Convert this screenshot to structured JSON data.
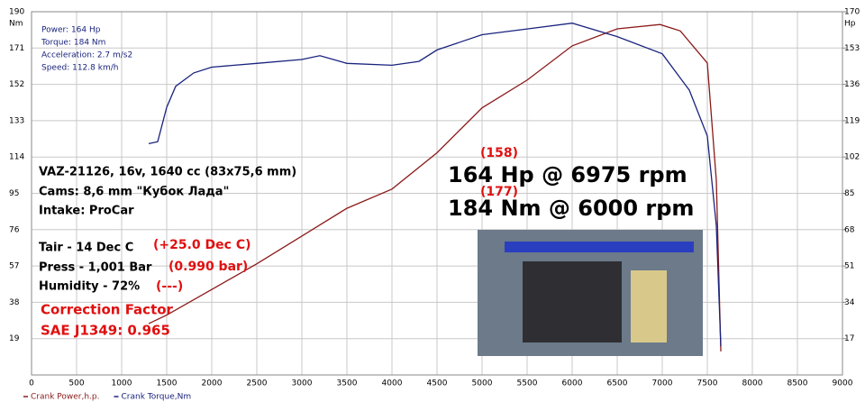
{
  "chart_data": {
    "type": "line",
    "y_unit": "Nm",
    "y2_unit": "Hp",
    "xlim": [
      0,
      9000
    ],
    "xticks": [
      0,
      500,
      1000,
      1500,
      2000,
      2500,
      3000,
      3500,
      4000,
      4500,
      5000,
      5500,
      6000,
      6500,
      7000,
      7500,
      8000,
      8500,
      9000
    ],
    "ylim": [
      0,
      190
    ],
    "yticks": [
      19,
      38,
      57,
      76,
      95,
      114,
      133,
      152,
      171,
      190
    ],
    "y2lim": [
      0,
      170
    ],
    "y2ticks": [
      17,
      34,
      51,
      68,
      85,
      102,
      119,
      136,
      153,
      170
    ],
    "grid": true,
    "series": [
      {
        "name": "Crank Power,h.p.",
        "color": "#8b1a1a",
        "axis": "y2",
        "x": [
          1300,
          1500,
          2000,
          2500,
          3000,
          3500,
          4000,
          4500,
          5000,
          5500,
          6000,
          6500,
          6975,
          7200,
          7500,
          7600,
          7650
        ],
        "values": [
          24,
          28,
          40,
          52,
          65,
          78,
          87,
          104,
          125,
          138,
          154,
          162,
          164,
          161,
          146,
          91,
          11
        ]
      },
      {
        "name": "Crank Torque,Nm",
        "color": "#1a237e",
        "x": [
          1300,
          1400,
          1500,
          1600,
          1800,
          2000,
          2500,
          3000,
          3200,
          3500,
          4000,
          4300,
          4500,
          5000,
          5500,
          6000,
          6500,
          7000,
          7300,
          7500,
          7600,
          7650
        ],
        "values": [
          121,
          122,
          140,
          151,
          158,
          161,
          163,
          165,
          167,
          163,
          162,
          164,
          170,
          178,
          181,
          184,
          177,
          168,
          149,
          125,
          78,
          15
        ]
      }
    ],
    "info": [
      "Power: 164 Hp",
      "Torque: 184 Nm",
      "Acceleration: 2.7 m/s2",
      "Speed: 112.8 km/h"
    ],
    "specs": [
      "VAZ-21126, 16v, 1640 cc (83x75,6 mm)",
      "Cams: 8,6 mm \"Кубок Лада\"",
      "Intake: ProCar",
      "Tair - 14 Dec C",
      "Press - 1,001 Bar",
      "Humidity - 72%"
    ],
    "corrections": [
      "(+25.0 Dec C)",
      "(0.990 bar)",
      "(---)",
      "Correction Factor",
      "SAE J1349: 0.965"
    ],
    "peaks": [
      {
        "note": "(158)",
        "text": "164 Hp @ 6975 rpm"
      },
      {
        "note": "(177)",
        "text": "184 Nm @ 6000 rpm"
      }
    ]
  }
}
